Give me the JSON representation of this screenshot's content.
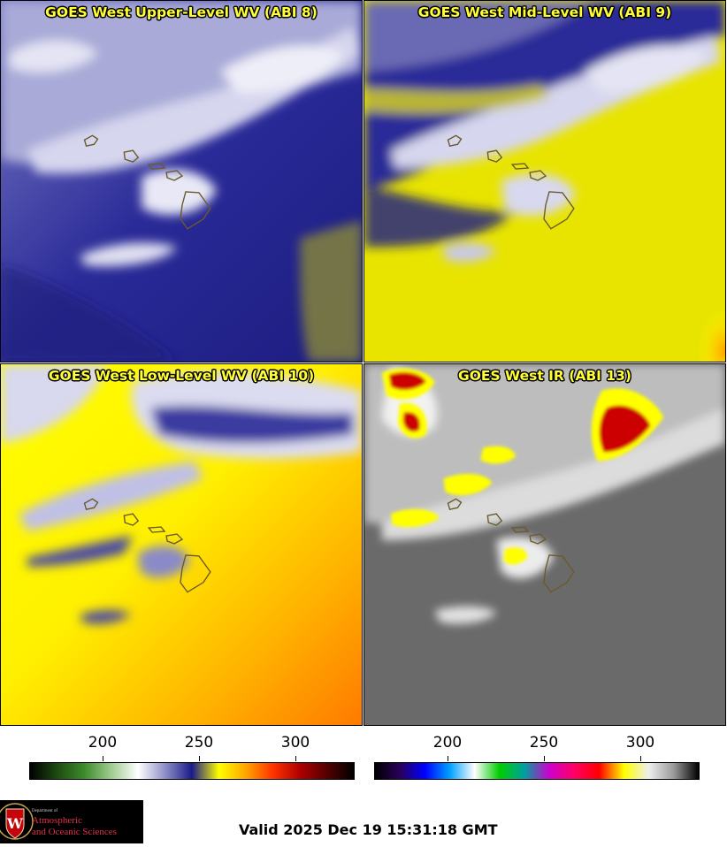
{
  "panels": [
    {
      "title": "GOES West Upper-Level WV (ABI 8)",
      "colormap": "wv"
    },
    {
      "title": "GOES West Mid-Level WV (ABI 9)",
      "colormap": "wv"
    },
    {
      "title": "GOES West Low-Level WV (ABI 10)",
      "colormap": "wv"
    },
    {
      "title": "GOES West IR (ABI 13)",
      "colormap": "ir"
    }
  ],
  "colorbars": {
    "left": {
      "ticks": [
        "200",
        "250",
        "300"
      ],
      "colors": [
        "#000000",
        "#1d4a10",
        "#3c8a2c",
        "#9fcb8f",
        "#ffffff",
        "#8f8fc8",
        "#1a1a88",
        "#ffff00",
        "#ffa500",
        "#ff3300",
        "#b00000",
        "#550000",
        "#000000"
      ]
    },
    "right": {
      "ticks": [
        "200",
        "250",
        "300"
      ],
      "colors": [
        "#000000",
        "#2a005a",
        "#0000ff",
        "#00a0ff",
        "#ffffff",
        "#00cc00",
        "#00a0a0",
        "#cc00cc",
        "#ff0066",
        "#ff0000",
        "#ffff00",
        "#eeeeee",
        "#999999",
        "#000000"
      ]
    }
  },
  "logo": {
    "line1": "Department of",
    "line2": "Atmospheric",
    "line3": "and Oceanic Sciences",
    "emblem": "W"
  },
  "footer": {
    "valid": "Valid 2025 Dec 19 15:31:18 GMT"
  }
}
